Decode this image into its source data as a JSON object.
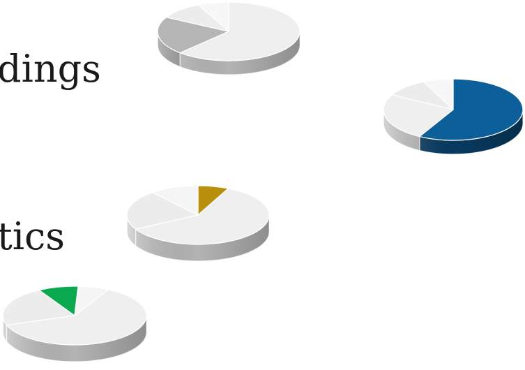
{
  "labels": [
    "dings",
    "tics"
  ],
  "pies": [
    {
      "name": "pie-gray",
      "accent": "#b5b5b5",
      "accent_side": "#8c8c8c",
      "slices": [
        {
          "fraction": 0.62,
          "color": "#efefef",
          "side": "#bdbdbd"
        },
        {
          "fraction": 0.21,
          "color": "#b5b5b5",
          "side": "#8c8c8c"
        },
        {
          "fraction": 0.1,
          "color": "#ececec",
          "side": "#c4c4c4"
        },
        {
          "fraction": 0.07,
          "color": "#f7f7f7",
          "side": "#cfcfcf"
        }
      ]
    },
    {
      "name": "pie-blue",
      "accent": "#0d5f9a",
      "accent_side": "#083d65",
      "slices": [
        {
          "fraction": 0.58,
          "color": "#0d5f9a",
          "side": "#083d65"
        },
        {
          "fraction": 0.25,
          "color": "#efefef",
          "side": "#bdbdbd"
        },
        {
          "fraction": 0.1,
          "color": "#ececec",
          "side": "#c4c4c4"
        },
        {
          "fraction": 0.07,
          "color": "#f7f7f7",
          "side": "#cfcfcf"
        }
      ]
    },
    {
      "name": "pie-gold",
      "accent": "#b8900d",
      "accent_side": "#7f6308",
      "slices": [
        {
          "fraction": 0.07,
          "color": "#b8900d",
          "side": "#7f6308"
        },
        {
          "fraction": 0.6,
          "color": "#efefef",
          "side": "#bdbdbd"
        },
        {
          "fraction": 0.22,
          "color": "#ececec",
          "side": "#c4c4c4"
        },
        {
          "fraction": 0.11,
          "color": "#f5f5f5",
          "side": "#cfcfcf"
        }
      ]
    },
    {
      "name": "pie-green",
      "accent": "#0aa84f",
      "accent_side": "#077a39",
      "slices": [
        {
          "fraction": 0.62,
          "color": "#efefef",
          "side": "#bdbdbd"
        },
        {
          "fraction": 0.22,
          "color": "#ececec",
          "side": "#c4c4c4"
        },
        {
          "fraction": 0.09,
          "color": "#0aa84f",
          "side": "#077a39"
        },
        {
          "fraction": 0.07,
          "color": "#f5f5f5",
          "side": "#cfcfcf"
        }
      ]
    }
  ]
}
